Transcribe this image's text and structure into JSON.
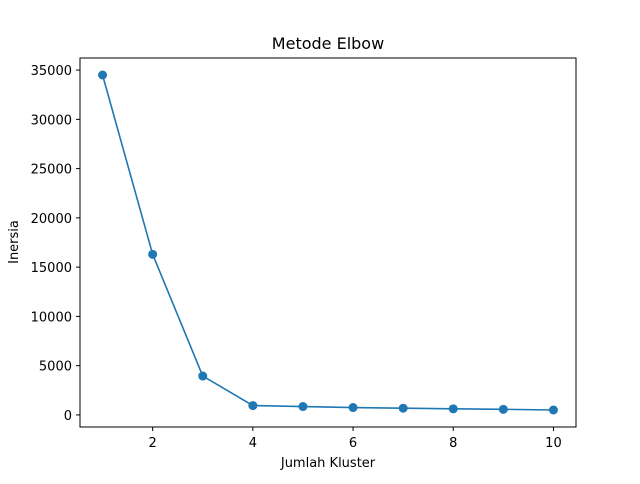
{
  "chart_data": {
    "type": "line",
    "title": "Metode Elbow",
    "xlabel": "Jumlah Kluster",
    "ylabel": "Inersia",
    "x": [
      1,
      2,
      3,
      4,
      5,
      6,
      7,
      8,
      9,
      10
    ],
    "series": [
      {
        "values": [
          34500,
          16300,
          3950,
          950,
          850,
          750,
          680,
          620,
          570,
          500
        ],
        "color": "#1f77b4"
      }
    ],
    "xticks": [
      2,
      4,
      6,
      8,
      10
    ],
    "yticks": [
      0,
      5000,
      10000,
      15000,
      20000,
      25000,
      30000,
      35000
    ],
    "xlim": [
      0.55,
      10.45
    ],
    "ylim": [
      -1225,
      36225
    ],
    "grid": false,
    "legend": "none"
  }
}
